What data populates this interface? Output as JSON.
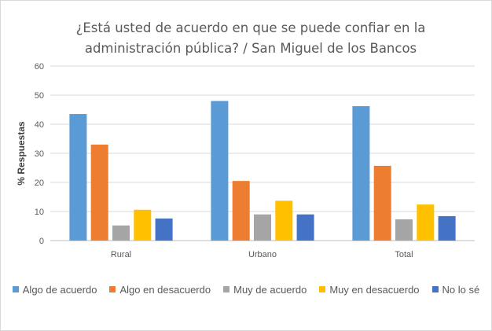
{
  "chart_data": {
    "type": "bar",
    "title_line1": "¿Está usted de acuerdo en que se puede confiar en la",
    "title_line2": "administración pública? / San Miguel de los Bancos",
    "ylabel": "% Respuestas",
    "xlabel": "",
    "ylim": [
      0,
      60
    ],
    "yticks": [
      0,
      10,
      20,
      30,
      40,
      50,
      60
    ],
    "categories": [
      "Rural",
      "Urbano",
      "Total"
    ],
    "series": [
      {
        "name": "Algo de acuerdo",
        "color": "#5B9BD5",
        "values": [
          43.5,
          48.0,
          46.2
        ]
      },
      {
        "name": "Algo en desacuerdo",
        "color": "#ED7D31",
        "values": [
          33.0,
          20.5,
          25.7
        ]
      },
      {
        "name": "Muy de acuerdo",
        "color": "#A5A5A5",
        "values": [
          5.2,
          9.0,
          7.3
        ]
      },
      {
        "name": "Muy en desacuerdo",
        "color": "#FFC000",
        "values": [
          10.6,
          13.7,
          12.4
        ]
      },
      {
        "name": "No lo sé",
        "color": "#4472C4",
        "values": [
          7.6,
          9.0,
          8.4
        ]
      }
    ],
    "grid": true,
    "legend_position": "bottom"
  }
}
